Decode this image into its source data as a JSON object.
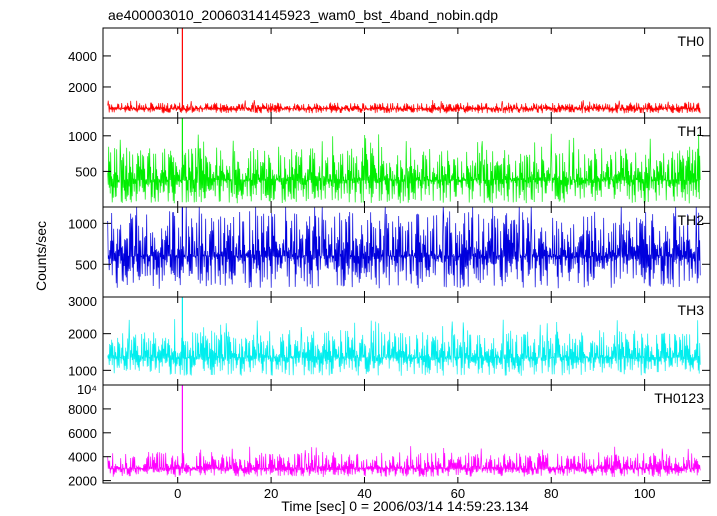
{
  "chart_data": {
    "type": "line",
    "title": "ae400003010_20060314145923_wam0_bst_4band_nobin.qdp",
    "xlabel": "Time [sec] 0 = 2006/03/14 14:59:23.134",
    "ylabel": "Counts/sec",
    "xlim": [
      -16,
      114
    ],
    "xticks": [
      0,
      20,
      40,
      60,
      80,
      100
    ],
    "grid": false,
    "data_range_x": [
      -15,
      112
    ],
    "spike_time": 1,
    "series": [
      {
        "name": "TH0",
        "color": "#ff0000",
        "ylim": [
          0,
          5800
        ],
        "yticks": [
          {
            "v": 2000,
            "label": "2000"
          },
          {
            "v": 4000,
            "label": "4000"
          }
        ],
        "baseline": 600,
        "noise_high": 1000,
        "noise_low": 300,
        "spike": 5800
      },
      {
        "name": "TH1",
        "color": "#00ee00",
        "ylim": [
          0,
          1250
        ],
        "yticks": [
          {
            "v": 500,
            "label": "500"
          },
          {
            "v": 1000,
            "label": "1000"
          }
        ],
        "baseline": 380,
        "noise_high": 850,
        "noise_low": 50,
        "spike": 1250
      },
      {
        "name": "TH2",
        "color": "#0000dd",
        "ylim": [
          100,
          1200
        ],
        "yticks": [
          {
            "v": 500,
            "label": "500"
          },
          {
            "v": 1000,
            "label": "1000"
          }
        ],
        "baseline": 600,
        "noise_high": 1150,
        "noise_low": 200,
        "spike": 1200
      },
      {
        "name": "TH3",
        "color": "#00eeee",
        "ylim": [
          600,
          3000
        ],
        "yticks": [
          {
            "v": 1000,
            "label": "1000"
          },
          {
            "v": 2000,
            "label": "2000"
          },
          {
            "v": 3000,
            "label": "3000"
          }
        ],
        "baseline": 1350,
        "noise_high": 2100,
        "noise_low": 850,
        "spike": 3000
      },
      {
        "name": "TH0123",
        "color": "#ff00ff",
        "ylim": [
          1800,
          10000
        ],
        "yticks": [
          {
            "v": 2000,
            "label": "2000"
          },
          {
            "v": 4000,
            "label": "4000"
          },
          {
            "v": 6000,
            "label": "6000"
          },
          {
            "v": 8000,
            "label": "8000"
          },
          {
            "v": 10000,
            "label": "10⁴"
          }
        ],
        "baseline": 3000,
        "noise_high": 4400,
        "noise_low": 2300,
        "spike": 10000
      }
    ]
  }
}
